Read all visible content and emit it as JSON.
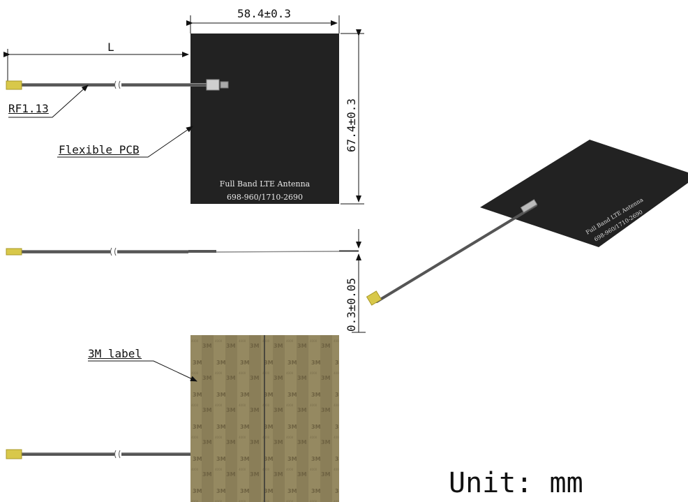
{
  "dimensions": {
    "width_label": "58.4±0.3",
    "height_label": "67.4±0.3",
    "thickness_label": "0.3±0.05",
    "cable_length_label": "L"
  },
  "callouts": {
    "cable": "RF1.13",
    "pcb": "Flexible PCB",
    "adhesive": "3M label"
  },
  "pcb_marking": {
    "line1": "Full Band LTE Antenna",
    "line2": "698-960/1710-2690"
  },
  "unit_note": "Unit: mm",
  "colors": {
    "pcb": "#222222",
    "cable": "#555555",
    "connector": "#d8c84a",
    "adhesive": "#8a7d55"
  }
}
